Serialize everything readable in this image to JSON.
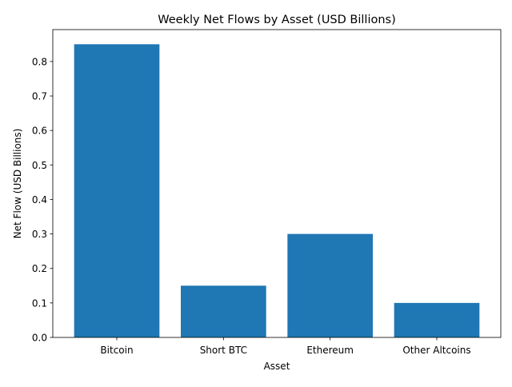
{
  "chart_data": {
    "type": "bar",
    "title": "Weekly Net Flows by Asset (USD Billions)",
    "xlabel": "Asset",
    "ylabel": "Net Flow (USD Billions)",
    "categories": [
      "Bitcoin",
      "Short BTC",
      "Ethereum",
      "Other Altcoins"
    ],
    "values": [
      0.85,
      0.15,
      0.3,
      0.1
    ],
    "ylim": [
      0,
      0.8925
    ],
    "yticks": [
      0.0,
      0.1,
      0.2,
      0.3,
      0.4,
      0.5,
      0.6,
      0.7,
      0.8
    ],
    "ytick_labels": [
      "0.0",
      "0.1",
      "0.2",
      "0.3",
      "0.4",
      "0.5",
      "0.6",
      "0.7",
      "0.8"
    ],
    "grid": false,
    "bar_color": "#1f77b4"
  }
}
